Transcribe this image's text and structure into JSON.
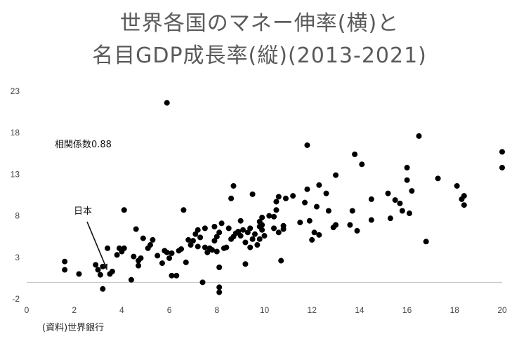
{
  "title_line1": "世界各国のマネー伸率(横)と",
  "title_line2": "名目GDP成長率(縦)(2013-2021)",
  "source": "(資料)世界銀行",
  "chart_data": {
    "type": "scatter",
    "title": "世界各国のマネー伸率(横)と名目GDP成長率(縦)(2013-2021)",
    "xlabel": "",
    "ylabel": "",
    "xlim": [
      0,
      20
    ],
    "ylim": [
      -2,
      23
    ],
    "x_ticks": [
      0,
      2,
      4,
      6,
      8,
      10,
      12,
      14,
      16,
      18,
      20
    ],
    "y_ticks": [
      -2,
      3,
      8,
      13,
      18,
      23
    ],
    "grid": false,
    "legend": "none",
    "marker_color": "#000000",
    "annotations": [
      {
        "text": "相関係数0.88"
      },
      {
        "text": "日本",
        "arrow_to": [
          3.5,
          1.0
        ]
      }
    ],
    "points": [
      [
        1.6,
        2.5
      ],
      [
        1.6,
        1.5
      ],
      [
        2.2,
        1.0
      ],
      [
        2.9,
        2.1
      ],
      [
        3.0,
        1.5
      ],
      [
        3.1,
        0.9
      ],
      [
        3.2,
        1.9
      ],
      [
        3.2,
        -0.8
      ],
      [
        3.4,
        4.1
      ],
      [
        3.5,
        1.0
      ],
      [
        3.6,
        1.3
      ],
      [
        3.8,
        3.3
      ],
      [
        3.9,
        4.1
      ],
      [
        4.0,
        3.7
      ],
      [
        4.1,
        4.1
      ],
      [
        4.1,
        8.7
      ],
      [
        4.4,
        0.3
      ],
      [
        4.5,
        3.1
      ],
      [
        4.6,
        6.4
      ],
      [
        4.7,
        2.0
      ],
      [
        4.7,
        2.6
      ],
      [
        4.8,
        2.9
      ],
      [
        4.9,
        5.3
      ],
      [
        5.1,
        4.1
      ],
      [
        5.2,
        4.5
      ],
      [
        5.3,
        5.1
      ],
      [
        5.5,
        3.2
      ],
      [
        5.7,
        2.3
      ],
      [
        5.8,
        3.8
      ],
      [
        5.9,
        21.6
      ],
      [
        5.9,
        3.6
      ],
      [
        6.0,
        2.9
      ],
      [
        6.1,
        0.8
      ],
      [
        6.1,
        3.5
      ],
      [
        6.3,
        0.8
      ],
      [
        6.4,
        3.8
      ],
      [
        6.5,
        4.0
      ],
      [
        6.6,
        8.7
      ],
      [
        6.7,
        2.4
      ],
      [
        6.8,
        5.1
      ],
      [
        6.9,
        4.5
      ],
      [
        7.0,
        5.0
      ],
      [
        7.1,
        5.8
      ],
      [
        7.2,
        6.3
      ],
      [
        7.2,
        4.3
      ],
      [
        7.3,
        5.4
      ],
      [
        7.4,
        0.0
      ],
      [
        7.5,
        6.5
      ],
      [
        7.5,
        4.2
      ],
      [
        7.6,
        3.6
      ],
      [
        7.7,
        4.1
      ],
      [
        7.8,
        3.9
      ],
      [
        7.9,
        5.0
      ],
      [
        7.9,
        6.7
      ],
      [
        8.0,
        5.5
      ],
      [
        8.0,
        3.7
      ],
      [
        8.1,
        6.0
      ],
      [
        8.1,
        -0.6
      ],
      [
        8.1,
        -1.2
      ],
      [
        8.1,
        1.8
      ],
      [
        8.2,
        7.1
      ],
      [
        8.3,
        4.1
      ],
      [
        8.4,
        4.2
      ],
      [
        8.5,
        6.5
      ],
      [
        8.6,
        10.1
      ],
      [
        8.6,
        5.2
      ],
      [
        8.7,
        11.6
      ],
      [
        8.7,
        5.5
      ],
      [
        8.8,
        5.9
      ],
      [
        8.9,
        6.1
      ],
      [
        9.0,
        7.4
      ],
      [
        9.0,
        5.6
      ],
      [
        9.1,
        6.3
      ],
      [
        9.2,
        4.8
      ],
      [
        9.2,
        2.2
      ],
      [
        9.3,
        6.0
      ],
      [
        9.4,
        4.2
      ],
      [
        9.4,
        6.5
      ],
      [
        9.5,
        5.2
      ],
      [
        9.5,
        10.6
      ],
      [
        9.6,
        5.8
      ],
      [
        9.7,
        4.5
      ],
      [
        9.8,
        5.2
      ],
      [
        9.8,
        6.7
      ],
      [
        9.8,
        7.3
      ],
      [
        9.9,
        6.3
      ],
      [
        9.9,
        7.8
      ],
      [
        9.9,
        6.9
      ],
      [
        10.0,
        5.6
      ],
      [
        10.2,
        8.0
      ],
      [
        10.4,
        6.5
      ],
      [
        10.4,
        7.9
      ],
      [
        10.5,
        8.7
      ],
      [
        10.5,
        9.7
      ],
      [
        10.6,
        10.3
      ],
      [
        10.6,
        6.0
      ],
      [
        10.7,
        2.6
      ],
      [
        10.8,
        6.8
      ],
      [
        10.8,
        6.4
      ],
      [
        10.9,
        10.1
      ],
      [
        11.2,
        10.4
      ],
      [
        11.5,
        7.2
      ],
      [
        11.7,
        9.6
      ],
      [
        11.8,
        16.5
      ],
      [
        11.8,
        11.2
      ],
      [
        11.9,
        7.4
      ],
      [
        12.0,
        5.1
      ],
      [
        12.1,
        6.0
      ],
      [
        12.2,
        9.1
      ],
      [
        12.3,
        11.7
      ],
      [
        12.3,
        5.7
      ],
      [
        12.6,
        10.7
      ],
      [
        12.7,
        8.6
      ],
      [
        12.9,
        6.6
      ],
      [
        13.0,
        12.9
      ],
      [
        13.0,
        6.9
      ],
      [
        13.6,
        6.9
      ],
      [
        13.7,
        8.6
      ],
      [
        13.8,
        15.4
      ],
      [
        13.9,
        6.2
      ],
      [
        14.1,
        14.2
      ],
      [
        14.5,
        10.0
      ],
      [
        14.5,
        7.5
      ],
      [
        15.2,
        10.7
      ],
      [
        15.3,
        7.7
      ],
      [
        15.5,
        9.9
      ],
      [
        15.7,
        9.5
      ],
      [
        15.8,
        8.6
      ],
      [
        16.0,
        13.8
      ],
      [
        16.0,
        12.3
      ],
      [
        16.1,
        8.3
      ],
      [
        16.2,
        11.0
      ],
      [
        16.5,
        17.6
      ],
      [
        16.8,
        4.9
      ],
      [
        17.3,
        12.5
      ],
      [
        18.1,
        11.6
      ],
      [
        18.3,
        10.0
      ],
      [
        18.4,
        10.4
      ],
      [
        18.4,
        9.3
      ],
      [
        20.0,
        15.7
      ],
      [
        20.0,
        13.8
      ]
    ]
  }
}
